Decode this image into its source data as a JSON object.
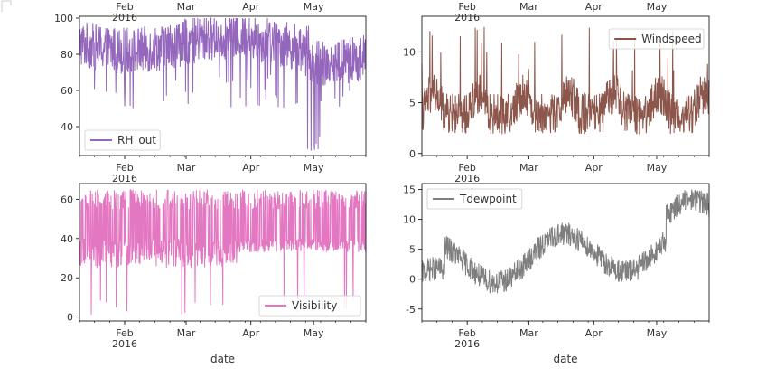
{
  "chart_data": [
    {
      "type": "line",
      "series": [
        {
          "name": "RH_out",
          "color": "#9467bd"
        }
      ],
      "ylim": [
        24,
        101
      ],
      "yticks": [
        40,
        60,
        80,
        100
      ],
      "xticks": [
        "Feb",
        "Mar",
        "Apr",
        "May"
      ],
      "xtick_sublabel": "2016",
      "top_tick_labels": [
        "Feb\n2016",
        "Mar",
        "Apr",
        "May"
      ],
      "xlabel": "",
      "legend_position": "lower-left",
      "grid": false
    },
    {
      "type": "line",
      "series": [
        {
          "name": "Windspeed",
          "color": "#8c564b"
        }
      ],
      "ylim": [
        -0.2,
        13.5
      ],
      "yticks": [
        0,
        5,
        10
      ],
      "xticks": [
        "Feb",
        "Mar",
        "Apr",
        "May"
      ],
      "xtick_sublabel": "2016",
      "top_tick_labels": [
        "Feb\n2016",
        "Mar",
        "Apr",
        "May"
      ],
      "xlabel": "",
      "legend_position": "upper-right",
      "grid": false
    },
    {
      "type": "line",
      "series": [
        {
          "name": "Visibility",
          "color": "#e377c2"
        }
      ],
      "ylim": [
        -2,
        68
      ],
      "yticks": [
        0,
        20,
        40,
        60
      ],
      "xticks": [
        "Feb",
        "Mar",
        "Apr",
        "May"
      ],
      "xtick_sublabel": "2016",
      "xlabel": "date",
      "legend_position": "lower-right",
      "grid": false
    },
    {
      "type": "line",
      "series": [
        {
          "name": "Tdewpoint",
          "color": "#7f7f7f"
        }
      ],
      "ylim": [
        -7,
        16
      ],
      "yticks": [
        -5,
        0,
        5,
        10,
        15
      ],
      "xticks": [
        "Feb",
        "Mar",
        "Apr",
        "May"
      ],
      "xtick_sublabel": "2016",
      "xlabel": "date",
      "legend_position": "upper-left",
      "grid": false
    }
  ]
}
